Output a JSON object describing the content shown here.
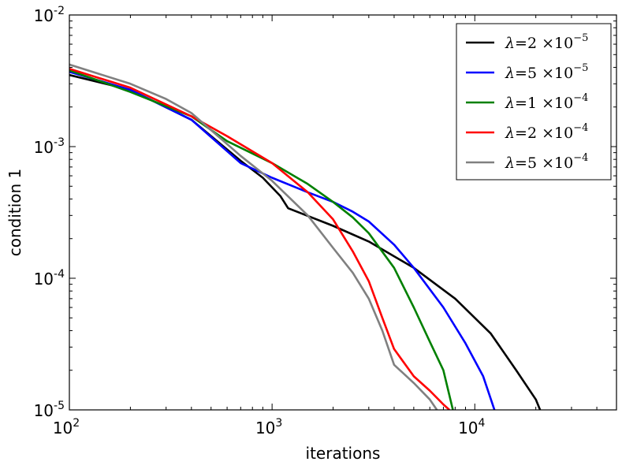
{
  "chart_data": {
    "type": "line",
    "xscale": "log",
    "yscale": "log",
    "xlim": [
      100,
      50000
    ],
    "ylim": [
      1e-05,
      0.01
    ],
    "xlabel": "iterations",
    "ylabel": "condition 1",
    "xticks": [
      {
        "value": 100,
        "base": "10",
        "exp": "2"
      },
      {
        "value": 1000,
        "base": "10",
        "exp": "3"
      },
      {
        "value": 10000,
        "base": "10",
        "exp": "4"
      }
    ],
    "yticks": [
      {
        "value": 0.01,
        "base": "10",
        "exp": "-2"
      },
      {
        "value": 0.001,
        "base": "10",
        "exp": "-3"
      },
      {
        "value": 0.0001,
        "base": "10",
        "exp": "-4"
      },
      {
        "value": 1e-05,
        "base": "10",
        "exp": "-5"
      }
    ],
    "legend_position": "top-right",
    "series": [
      {
        "name": "λ=2 ×10^-5",
        "legend": {
          "lambda": "λ",
          "eq": "=",
          "coef": "2",
          "times": "×10",
          "exp": "−5"
        },
        "color": "#000000",
        "points": [
          [
            100,
            0.0035
          ],
          [
            200,
            0.0027
          ],
          [
            400,
            0.0016
          ],
          [
            700,
            0.00078
          ],
          [
            900,
            0.00058
          ],
          [
            1100,
            0.00042
          ],
          [
            1200,
            0.00034
          ],
          [
            2000,
            0.00025
          ],
          [
            3000,
            0.00019
          ],
          [
            5000,
            0.00012
          ],
          [
            8000,
            7e-05
          ],
          [
            12000,
            3.8e-05
          ],
          [
            16000,
            2e-05
          ],
          [
            20000,
            1.2e-05
          ],
          [
            21000,
            1e-05
          ]
        ]
      },
      {
        "name": "λ=5 ×10^-5",
        "legend": {
          "lambda": "λ",
          "eq": "=",
          "coef": "5",
          "times": "×10",
          "exp": "−5"
        },
        "color": "#0000ff",
        "points": [
          [
            100,
            0.0037
          ],
          [
            200,
            0.0027
          ],
          [
            400,
            0.0016
          ],
          [
            700,
            0.00075
          ],
          [
            1000,
            0.00058
          ],
          [
            1500,
            0.00045
          ],
          [
            2000,
            0.00038
          ],
          [
            2500,
            0.00032
          ],
          [
            3000,
            0.00027
          ],
          [
            4000,
            0.00018
          ],
          [
            5000,
            0.00012
          ],
          [
            7000,
            6e-05
          ],
          [
            9000,
            3.2e-05
          ],
          [
            11000,
            1.8e-05
          ],
          [
            12500,
            1e-05
          ]
        ]
      },
      {
        "name": "λ=1 ×10^-4",
        "legend": {
          "lambda": "λ",
          "eq": "=",
          "coef": "1",
          "times": "×10",
          "exp": "−4"
        },
        "color": "#008000",
        "points": [
          [
            100,
            0.0038
          ],
          [
            200,
            0.0026
          ],
          [
            400,
            0.0017
          ],
          [
            600,
            0.0011
          ],
          [
            1000,
            0.00075
          ],
          [
            1500,
            0.00052
          ],
          [
            2000,
            0.00038
          ],
          [
            2500,
            0.00029
          ],
          [
            3000,
            0.00022
          ],
          [
            4000,
            0.00012
          ],
          [
            5000,
            6e-05
          ],
          [
            6000,
            3.3e-05
          ],
          [
            7000,
            2e-05
          ],
          [
            7800,
            1e-05
          ]
        ]
      },
      {
        "name": "λ=2 ×10^-4",
        "legend": {
          "lambda": "λ",
          "eq": "=",
          "coef": "2",
          "times": "×10",
          "exp": "−4"
        },
        "color": "#ff0000",
        "points": [
          [
            100,
            0.0039
          ],
          [
            200,
            0.0028
          ],
          [
            400,
            0.0017
          ],
          [
            600,
            0.0012
          ],
          [
            1000,
            0.00075
          ],
          [
            1500,
            0.00045
          ],
          [
            2000,
            0.00028
          ],
          [
            2500,
            0.00016
          ],
          [
            3000,
            9.5e-05
          ],
          [
            3500,
            5e-05
          ],
          [
            4000,
            2.9e-05
          ],
          [
            5000,
            1.8e-05
          ],
          [
            6000,
            1.4e-05
          ],
          [
            7000,
            1.1e-05
          ],
          [
            7500,
            1e-05
          ]
        ]
      },
      {
        "name": "λ=5 ×10^-4",
        "legend": {
          "lambda": "λ",
          "eq": "=",
          "coef": "5",
          "times": "×10",
          "exp": "−4"
        },
        "color": "#808080",
        "points": [
          [
            100,
            0.0042
          ],
          [
            200,
            0.003
          ],
          [
            300,
            0.0023
          ],
          [
            400,
            0.0018
          ],
          [
            700,
            0.00085
          ],
          [
            1000,
            0.00055
          ],
          [
            1500,
            0.0003
          ],
          [
            2000,
            0.00017
          ],
          [
            2500,
            0.00011
          ],
          [
            3000,
            7e-05
          ],
          [
            3500,
            4e-05
          ],
          [
            4000,
            2.2e-05
          ],
          [
            5000,
            1.6e-05
          ],
          [
            6000,
            1.2e-05
          ],
          [
            6500,
            1e-05
          ]
        ]
      }
    ]
  }
}
